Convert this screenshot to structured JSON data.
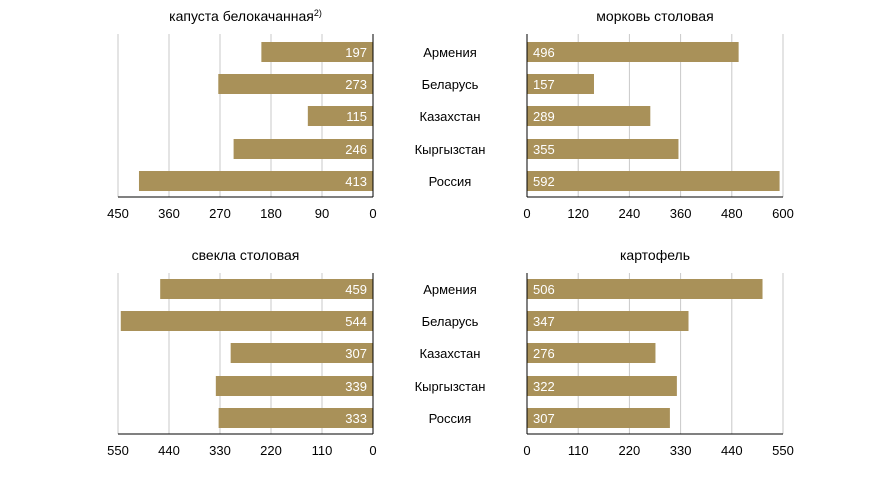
{
  "colors": {
    "bar": "#a99159",
    "grid": "#c8c8c8",
    "axis": "#000000",
    "text": "#000000",
    "value_text": "#ffffff"
  },
  "countries": [
    "Армения",
    "Беларусь",
    "Казахстан",
    "Кыргызстан",
    "Россия"
  ],
  "chart_data": [
    {
      "type": "bar",
      "orientation": "horizontal",
      "direction": "leftward",
      "title": "капуста белокачанная",
      "title_footnote": "2)",
      "categories": [
        "Армения",
        "Беларусь",
        "Казахстан",
        "Кыргызстан",
        "Россия"
      ],
      "values": [
        197,
        273,
        115,
        246,
        413
      ],
      "xlim": [
        0,
        450
      ],
      "xticks": [
        "450",
        "360",
        "270",
        "180",
        "90",
        "0"
      ],
      "grid": true
    },
    {
      "type": "bar",
      "orientation": "horizontal",
      "direction": "rightward",
      "title": "морковь столовая",
      "title_footnote": "",
      "categories": [
        "Армения",
        "Беларусь",
        "Казахстан",
        "Кыргызстан",
        "Россия"
      ],
      "values": [
        496,
        157,
        289,
        355,
        592
      ],
      "xlim": [
        0,
        600
      ],
      "xticks": [
        "0",
        "120",
        "240",
        "360",
        "480",
        "600"
      ],
      "grid": true
    },
    {
      "type": "bar",
      "orientation": "horizontal",
      "direction": "leftward",
      "title": "свекла столовая",
      "title_footnote": "",
      "categories": [
        "Армения",
        "Беларусь",
        "Казахстан",
        "Кыргызстан",
        "Россия"
      ],
      "values": [
        459,
        544,
        307,
        339,
        333
      ],
      "xlim": [
        0,
        550
      ],
      "xticks": [
        "550",
        "440",
        "330",
        "220",
        "110",
        "0"
      ],
      "grid": true
    },
    {
      "type": "bar",
      "orientation": "horizontal",
      "direction": "rightward",
      "title": "картофель",
      "title_footnote": "",
      "categories": [
        "Армения",
        "Беларусь",
        "Казахстан",
        "Кыргызстан",
        "Россия"
      ],
      "values": [
        506,
        347,
        276,
        322,
        307
      ],
      "xlim": [
        0,
        550
      ],
      "xticks": [
        "0",
        "110",
        "220",
        "330",
        "440",
        "550"
      ],
      "grid": true
    }
  ]
}
